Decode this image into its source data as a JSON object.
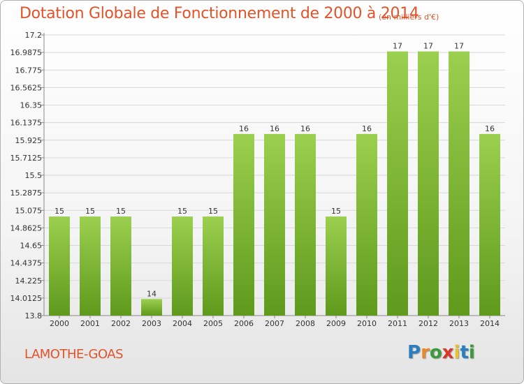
{
  "header": {
    "title": "Dotation Globale de Fonctionnement de 2000 à 2014",
    "subtitle": "(en milliers d'€)"
  },
  "footer": {
    "commune": "LAMOTHE-GOAS",
    "brand_letters": [
      "P",
      "r",
      "o",
      "x",
      "i",
      "t",
      "i"
    ],
    "brand_colors": [
      "#2b7fc1",
      "#e8892b",
      "#3b9a3b",
      "#d9352b",
      "#e8c12b",
      "#2b7fc1",
      "#3b9a3b"
    ]
  },
  "colors": {
    "title": "#e2532a",
    "bar_top": "#9bcf4f",
    "bar_bottom": "#5f9a1c",
    "grid": "#d8d8d8"
  },
  "chart_data": {
    "type": "bar",
    "title": "Dotation Globale de Fonctionnement de 2000 à 2014",
    "subtitle": "(en milliers d'€)",
    "categories": [
      "2000",
      "2001",
      "2002",
      "2003",
      "2004",
      "2005",
      "2006",
      "2007",
      "2008",
      "2009",
      "2010",
      "2011",
      "2012",
      "2013",
      "2014"
    ],
    "values": [
      15,
      15,
      15,
      14,
      15,
      15,
      16,
      16,
      16,
      15,
      16,
      17,
      17,
      17,
      16
    ],
    "value_labels": [
      "15",
      "15",
      "15",
      "14",
      "15",
      "15",
      "16",
      "16",
      "16",
      "15",
      "16",
      "17",
      "17",
      "17",
      "16"
    ],
    "ylim": [
      13.8,
      17.2
    ],
    "yticks": [
      "17.2",
      "16.9875",
      "16.775",
      "16.5625",
      "16.35",
      "16.1375",
      "15.925",
      "15.7125",
      "15.5",
      "15.2875",
      "15.075",
      "14.8625",
      "14.65",
      "14.4375",
      "14.225",
      "14.0125",
      "13.8"
    ],
    "grid": true,
    "legend": "none"
  }
}
